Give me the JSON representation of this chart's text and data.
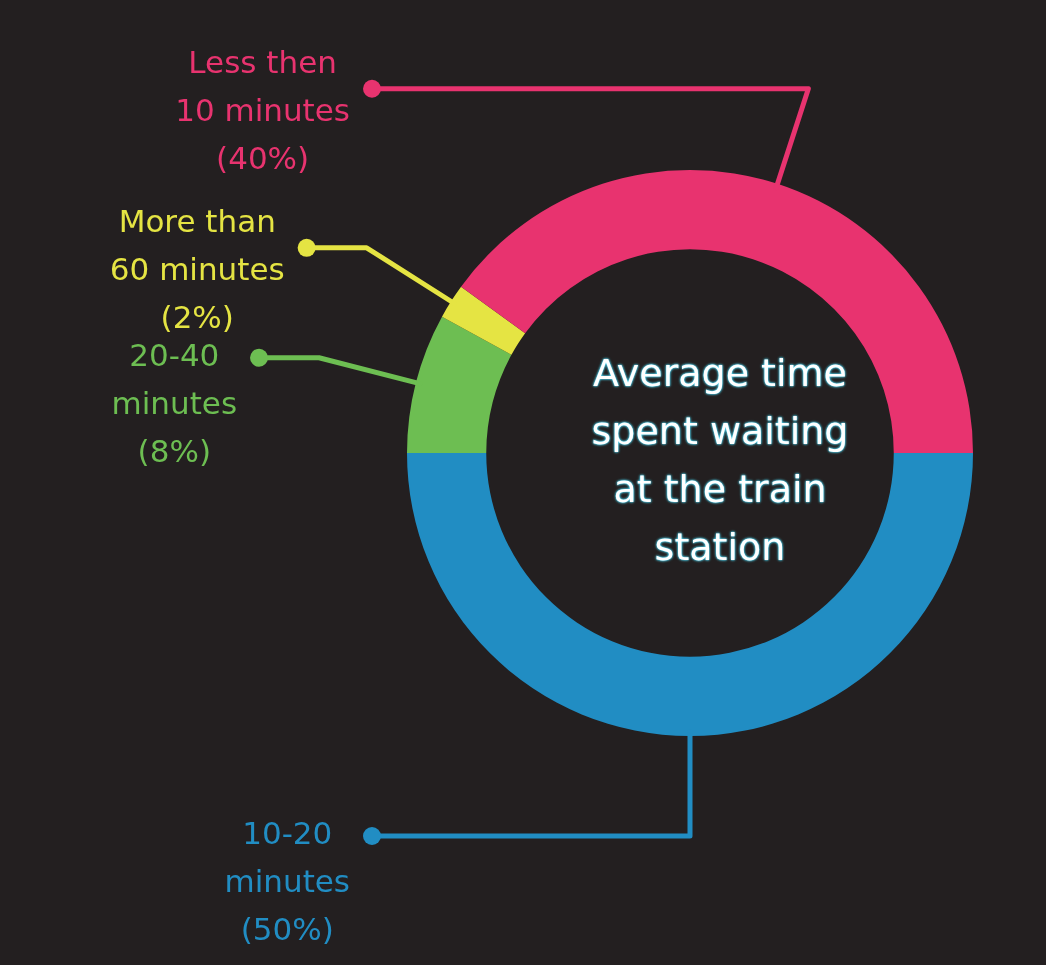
{
  "chart_data": {
    "type": "donut",
    "title": "Average time spent waiting at the train station",
    "categories": [
      "10-20 minutes",
      "20-40 minutes",
      "More than 60 minutes",
      "Less then 10 minutes"
    ],
    "values": [
      50,
      8,
      2,
      40
    ],
    "colors": [
      "#218dc3",
      "#6dbe52",
      "#e5e443",
      "#e8336f"
    ],
    "value_labels": [
      "(50%)",
      "(8%)",
      "(2%)",
      "(40%)"
    ],
    "legend": "left"
  }
}
